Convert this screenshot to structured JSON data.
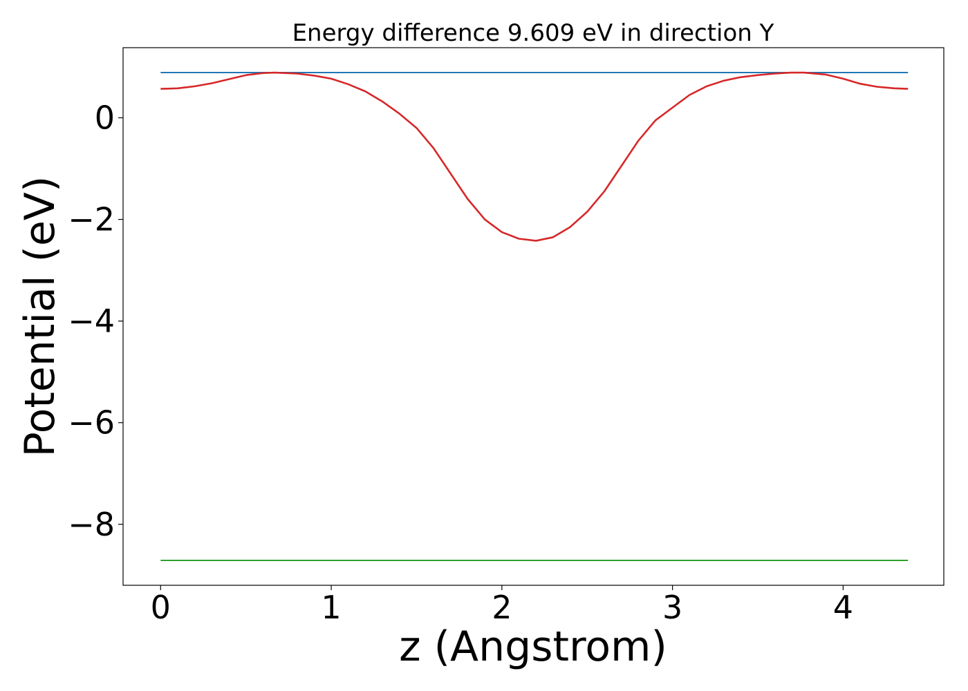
{
  "chart_data": {
    "type": "line",
    "title": "Energy difference 9.609 eV in direction Y",
    "xlabel": "z (Angstrom)",
    "ylabel": "Potential (eV)",
    "xlim": [
      -0.22,
      4.59
    ],
    "ylim": [
      -9.2,
      1.38
    ],
    "x_ticks": [
      {
        "value": 0,
        "label": "0"
      },
      {
        "value": 1,
        "label": "1"
      },
      {
        "value": 2,
        "label": "2"
      },
      {
        "value": 3,
        "label": "3"
      },
      {
        "value": 4,
        "label": "4"
      }
    ],
    "y_ticks": [
      {
        "value": 0,
        "label": "0"
      },
      {
        "value": -2,
        "label": "−2"
      },
      {
        "value": -4,
        "label": "−4"
      },
      {
        "value": -6,
        "label": "−6"
      },
      {
        "value": -8,
        "label": "−8"
      }
    ],
    "grid": false,
    "series": [
      {
        "color": "#1f77b4",
        "x": [
          0,
          4.38
        ],
        "y": [
          0.89,
          0.89
        ]
      },
      {
        "color": "#d62728",
        "x": [
          0,
          0.1,
          0.2,
          0.3,
          0.4,
          0.5,
          0.6,
          0.67,
          0.8,
          0.9,
          1.0,
          1.1,
          1.2,
          1.3,
          1.4,
          1.5,
          1.6,
          1.7,
          1.8,
          1.9,
          2.0,
          2.1,
          2.2,
          2.3,
          2.4,
          2.5,
          2.6,
          2.7,
          2.8,
          2.9,
          3.0,
          3.1,
          3.2,
          3.3,
          3.4,
          3.5,
          3.6,
          3.7,
          3.77,
          3.9,
          4.0,
          4.1,
          4.2,
          4.3,
          4.38
        ],
        "y": [
          0.57,
          0.58,
          0.62,
          0.68,
          0.76,
          0.84,
          0.88,
          0.89,
          0.87,
          0.83,
          0.77,
          0.66,
          0.52,
          0.32,
          0.08,
          -0.2,
          -0.6,
          -1.1,
          -1.6,
          -2.0,
          -2.25,
          -2.38,
          -2.42,
          -2.35,
          -2.15,
          -1.85,
          -1.45,
          -0.95,
          -0.45,
          -0.05,
          0.2,
          0.45,
          0.62,
          0.73,
          0.8,
          0.84,
          0.87,
          0.89,
          0.89,
          0.85,
          0.77,
          0.67,
          0.61,
          0.58,
          0.57
        ]
      },
      {
        "color": "#2ca02c",
        "x": [
          0,
          4.38
        ],
        "y": [
          -8.71,
          -8.71
        ]
      }
    ]
  }
}
